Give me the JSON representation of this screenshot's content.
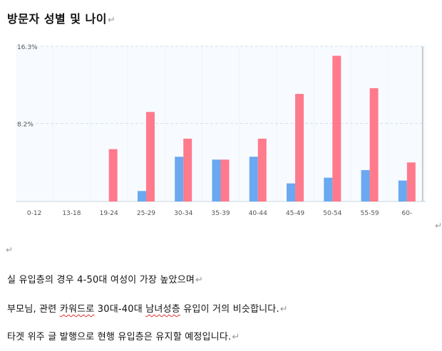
{
  "document": {
    "heading": "방문자 성별 및 나이",
    "return_mark": "↵",
    "paragraphs": [
      "실 유입층의 경우 4-50대 여성이 가장 높았으며",
      "타겟 위주 글 발행으로 현행 유입층은 유지할 예정입니다."
    ],
    "paragraph2": {
      "part1": "부모님, 관련 ",
      "word1": "카워드로",
      "part2": " 30대-40대 ",
      "word2": "남녀성층",
      "part3": " 유입이 거의 비슷합니다."
    }
  },
  "chart_data": {
    "type": "bar",
    "categories": [
      "0-12",
      "13-18",
      "19-24",
      "25-29",
      "30-34",
      "35-39",
      "40-44",
      "45-49",
      "50-54",
      "55-59",
      "60-"
    ],
    "series": [
      {
        "color": "#6aa8f0",
        "values": [
          0,
          0,
          0,
          1.1,
          4.7,
          4.4,
          4.7,
          1.9,
          2.5,
          3.3,
          2.2
        ]
      },
      {
        "color": "#ff7a8c",
        "values": [
          0,
          0,
          5.5,
          9.4,
          6.6,
          4.4,
          6.6,
          11.3,
          15.3,
          11.9,
          4.1
        ]
      }
    ],
    "ylim": [
      0,
      16.3
    ],
    "y_tick_labels": [
      "16.3%",
      "8.2%"
    ],
    "y_tick_values": [
      16.3,
      8.2
    ],
    "highlight_category": "60-",
    "grid": true
  }
}
